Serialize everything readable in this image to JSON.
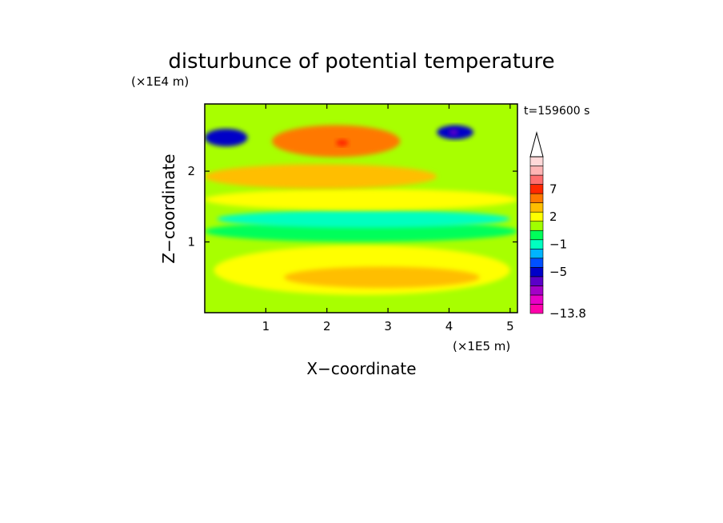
{
  "chart_data": {
    "type": "heatmap",
    "title": "disturbunce of potential temperature",
    "y_scale_note": "(×1E4 m)",
    "x_scale_note": "(×1E5 m)",
    "xlabel": "X−coordinate",
    "ylabel": "Z−coordinate",
    "time_label": "t=159600 s",
    "xlim": [
      0,
      5.12
    ],
    "ylim": [
      0,
      2.95
    ],
    "x_ticks": [
      {
        "value": 1,
        "label": "1"
      },
      {
        "value": 2,
        "label": "2"
      },
      {
        "value": 3,
        "label": "3"
      },
      {
        "value": 4,
        "label": "4"
      },
      {
        "value": 5,
        "label": "5"
      }
    ],
    "y_ticks": [
      {
        "value": 1,
        "label": "1"
      },
      {
        "value": 2,
        "label": "2"
      }
    ],
    "colorbar": {
      "levels": [
        {
          "color": "#ff00ab",
          "value": -13.8
        },
        {
          "color": "#e800c8"
        },
        {
          "color": "#a400c8"
        },
        {
          "color": "#5a00c8"
        },
        {
          "color": "#0000c8",
          "value": -5
        },
        {
          "color": "#0050ff"
        },
        {
          "color": "#00b4ff"
        },
        {
          "color": "#00ffc0",
          "value": -1
        },
        {
          "color": "#00ff5a"
        },
        {
          "color": "#a0ff00"
        },
        {
          "color": "#ffff00",
          "value": 2
        },
        {
          "color": "#ffbe00"
        },
        {
          "color": "#ff7800"
        },
        {
          "color": "#ff2800",
          "value": 7
        },
        {
          "color": "#ff6e6e"
        },
        {
          "color": "#ffb4b4"
        },
        {
          "color": "#ffd8d8"
        }
      ],
      "tick_labels": [
        "−13.8",
        "−5",
        "−1",
        "2",
        "7"
      ]
    },
    "fields": [
      {
        "name": "background",
        "color": "#a8ff00"
      },
      {
        "name": "lower-yellow-band",
        "color": "#ffff00",
        "x": [
          0.15,
          5.0
        ],
        "z": [
          0.25,
          0.95
        ]
      },
      {
        "name": "lower-orange-band",
        "color": "#ffbe00",
        "x": [
          1.3,
          4.5
        ],
        "z": [
          0.35,
          0.65
        ]
      },
      {
        "name": "mid-green-band",
        "color": "#00ff5a",
        "x": [
          0,
          5.12
        ],
        "z": [
          1.0,
          1.3
        ]
      },
      {
        "name": "cyan-band",
        "color": "#00ffc0",
        "x": [
          0.2,
          5.0
        ],
        "z": [
          1.2,
          1.45
        ]
      },
      {
        "name": "upper-yellow-band",
        "color": "#ffff00",
        "x": [
          0,
          5.12
        ],
        "z": [
          1.45,
          1.75
        ]
      },
      {
        "name": "upper-orange-band",
        "color": "#ffbe00",
        "x": [
          0,
          3.8
        ],
        "z": [
          1.75,
          2.1
        ]
      },
      {
        "name": "dome-orange",
        "color": "#ff7800",
        "x": [
          1.1,
          3.2
        ],
        "z": [
          2.2,
          2.65
        ]
      },
      {
        "name": "dome-red-peak",
        "color": "#ff2800",
        "x": [
          2.15,
          2.35
        ],
        "z": [
          2.35,
          2.45
        ]
      },
      {
        "name": "left-blue-core",
        "color": "#0000c8",
        "x": [
          0,
          0.7
        ],
        "z": [
          2.35,
          2.6
        ]
      },
      {
        "name": "right-blue-core",
        "color": "#0000c8",
        "x": [
          3.8,
          4.4
        ],
        "z": [
          2.45,
          2.65
        ]
      },
      {
        "name": "right-purple-core",
        "color": "#5a00c8",
        "x": [
          4.0,
          4.15
        ],
        "z": [
          2.5,
          2.6
        ]
      }
    ]
  }
}
